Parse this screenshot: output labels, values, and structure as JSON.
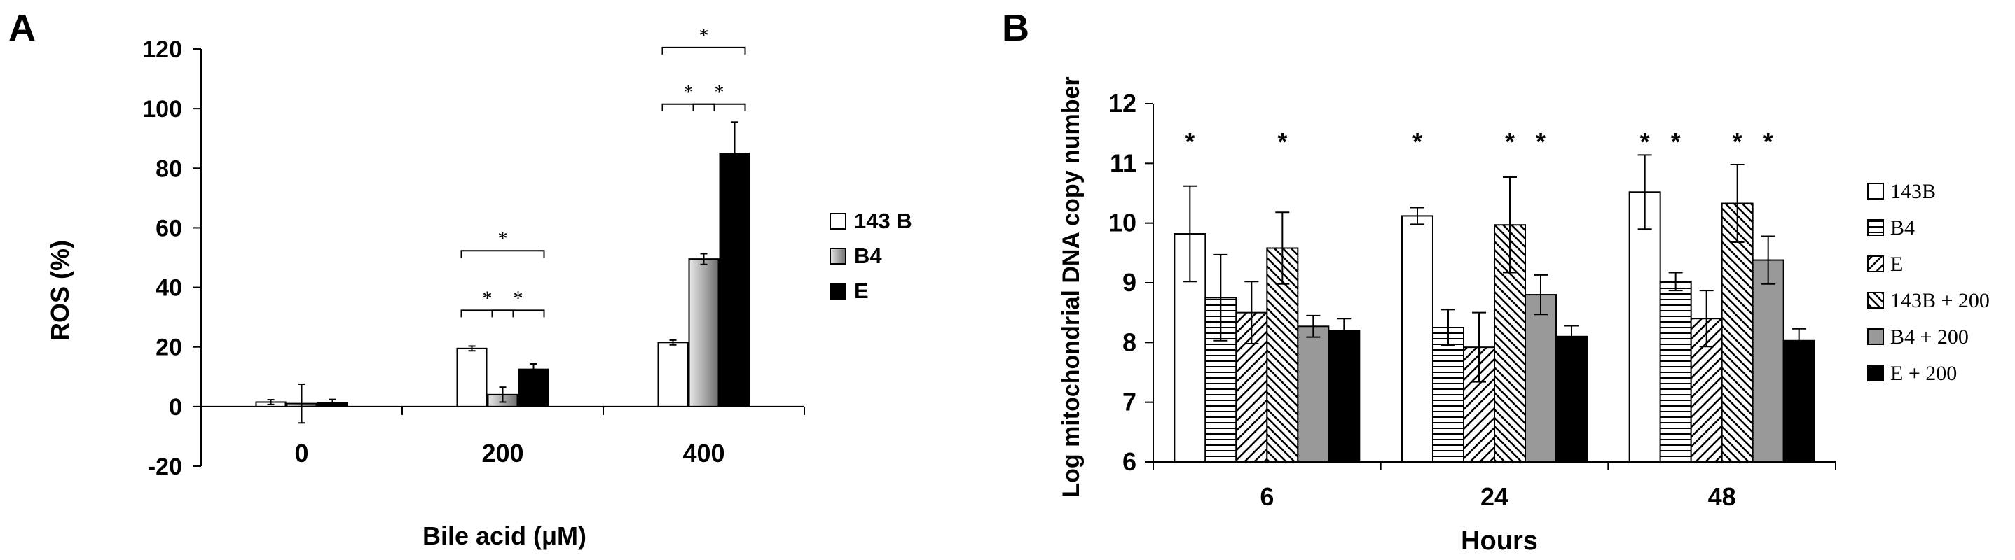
{
  "chart_data": [
    {
      "panel_label": "A",
      "type": "bar",
      "xlabel": "Bile acid (μM)",
      "ylabel": "ROS (%)",
      "ylim": [
        -20,
        120
      ],
      "yticks": [
        "-20",
        "0",
        "20",
        "40",
        "60",
        "80",
        "100",
        "120"
      ],
      "categories": [
        "0",
        "200",
        "400"
      ],
      "legend_position": "right",
      "series": [
        {
          "name": "143 B",
          "fill": "#ffffff",
          "values": [
            1.5,
            19.5,
            21.5
          ],
          "errors": [
            0.8,
            0.8,
            0.8
          ]
        },
        {
          "name": "B4",
          "fill": "gradient-gray",
          "values": [
            1.0,
            4.0,
            49.5
          ],
          "errors": [
            6.5,
            2.5,
            1.8
          ]
        },
        {
          "name": "E",
          "fill": "#000000",
          "values": [
            1.2,
            12.5,
            85.0
          ],
          "errors": [
            1.2,
            1.8,
            10.5
          ]
        }
      ],
      "significance": [
        {
          "category": "200",
          "pair": [
            "143 B",
            "B4"
          ],
          "label": "*"
        },
        {
          "category": "200",
          "pair": [
            "B4",
            "E"
          ],
          "label": "*"
        },
        {
          "category": "200",
          "pair": [
            "143 B",
            "E"
          ],
          "label": "*"
        },
        {
          "category": "400",
          "pair": [
            "143 B",
            "B4"
          ],
          "label": "*"
        },
        {
          "category": "400",
          "pair": [
            "B4",
            "E"
          ],
          "label": "*"
        },
        {
          "category": "400",
          "pair": [
            "143 B",
            "E"
          ],
          "label": "*"
        }
      ]
    },
    {
      "panel_label": "B",
      "type": "bar",
      "xlabel": "Hours",
      "ylabel": "Log mitochondrial DNA copy number",
      "ylim": [
        6,
        12
      ],
      "yticks": [
        "6",
        "7",
        "8",
        "9",
        "10",
        "11",
        "12"
      ],
      "categories": [
        "6",
        "24",
        "48"
      ],
      "legend_position": "right",
      "series": [
        {
          "name": "143B",
          "fill": "white",
          "values": [
            9.82,
            10.12,
            10.52
          ],
          "errors": [
            0.8,
            0.14,
            0.62
          ],
          "star": [
            true,
            true,
            true
          ]
        },
        {
          "name": "B4",
          "fill": "hlines",
          "values": [
            8.75,
            8.25,
            9.02
          ],
          "errors": [
            0.72,
            0.3,
            0.15
          ],
          "star": [
            false,
            false,
            true
          ]
        },
        {
          "name": "E",
          "fill": "diag-fwd",
          "values": [
            8.5,
            7.92,
            8.4
          ],
          "errors": [
            0.52,
            0.58,
            0.47
          ],
          "star": [
            false,
            false,
            false
          ]
        },
        {
          "name": "143B + 200",
          "fill": "diag-back",
          "values": [
            9.58,
            9.97,
            10.33
          ],
          "errors": [
            0.6,
            0.8,
            0.65
          ],
          "star": [
            true,
            true,
            true
          ]
        },
        {
          "name": "B4 + 200",
          "fill": "#999999",
          "values": [
            8.27,
            8.8,
            9.38
          ],
          "errors": [
            0.18,
            0.33,
            0.4
          ],
          "star": [
            false,
            true,
            true
          ]
        },
        {
          "name": "E + 200",
          "fill": "#000000",
          "values": [
            8.2,
            8.1,
            8.03
          ],
          "errors": [
            0.2,
            0.18,
            0.2
          ],
          "star": [
            false,
            false,
            false
          ]
        }
      ]
    }
  ]
}
